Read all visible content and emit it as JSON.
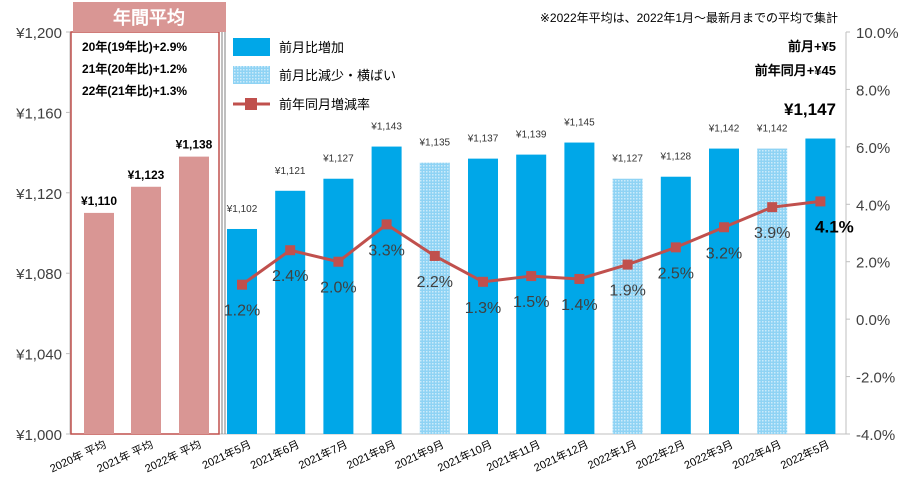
{
  "chart_data": {
    "type": "bar+line",
    "title_badge": "年間平均",
    "note": "※2022年平均は、2022年1月～最新月までの平均で集計",
    "annual_notes": [
      "20年(19年比)+2.9%",
      "21年(20年比)+1.2%",
      "22年(21年比)+1.3%"
    ],
    "summary": {
      "mom": "前月+¥5",
      "yoy": "前年同月+¥45",
      "latest": "¥1,147"
    },
    "legend": [
      {
        "key": "increase",
        "label": "前月比増加",
        "color": "#00a7e8"
      },
      {
        "key": "flat",
        "label": "前月比減少・横ばい",
        "color": "#8fd3f4"
      },
      {
        "key": "yoy",
        "label": "前年同月増減率",
        "color": "#c0504d"
      }
    ],
    "y_left": {
      "min": 1000,
      "max": 1200,
      "ticks": [
        "¥1,000",
        "¥1,040",
        "¥1,080",
        "¥1,120",
        "¥1,160",
        "¥1,200"
      ]
    },
    "y_right": {
      "min": -4.0,
      "max": 10.0,
      "ticks": [
        "-4.0%",
        "-2.0%",
        "0.0%",
        "2.0%",
        "4.0%",
        "6.0%",
        "8.0%",
        "10.0%"
      ]
    },
    "annual": {
      "categories": [
        "2020年 平均",
        "2021年 平均",
        "2022年 平均"
      ],
      "values": [
        1110,
        1123,
        1138
      ],
      "labels": [
        "¥1,110",
        "¥1,123",
        "¥1,138"
      ],
      "color": "#d99694"
    },
    "monthly": {
      "categories": [
        "2021年5月",
        "2021年6月",
        "2021年7月",
        "2021年8月",
        "2021年9月",
        "2021年10月",
        "2021年11月",
        "2021年12月",
        "2022年1月",
        "2022年2月",
        "2022年3月",
        "2022年4月",
        "2022年5月"
      ],
      "values": [
        1102,
        1121,
        1127,
        1143,
        1135,
        1137,
        1139,
        1145,
        1127,
        1128,
        1142,
        1142,
        1147
      ],
      "labels": [
        "¥1,102",
        "¥1,121",
        "¥1,127",
        "¥1,143",
        "¥1,135",
        "¥1,137",
        "¥1,139",
        "¥1,145",
        "¥1,127",
        "¥1,128",
        "¥1,142",
        "¥1,142",
        ""
      ],
      "kinds": [
        "increase",
        "increase",
        "increase",
        "increase",
        "flat",
        "increase",
        "increase",
        "increase",
        "flat",
        "increase",
        "increase",
        "flat",
        "increase"
      ],
      "yoy": [
        1.2,
        2.4,
        2.0,
        3.3,
        2.2,
        1.3,
        1.5,
        1.4,
        1.9,
        2.5,
        3.2,
        3.9,
        4.1
      ],
      "yoy_labels": [
        "1.2%",
        "2.4%",
        "2.0%",
        "3.3%",
        "2.2%",
        "1.3%",
        "1.5%",
        "1.4%",
        "1.9%",
        "2.5%",
        "3.2%",
        "3.9%",
        "4.1%"
      ]
    }
  }
}
